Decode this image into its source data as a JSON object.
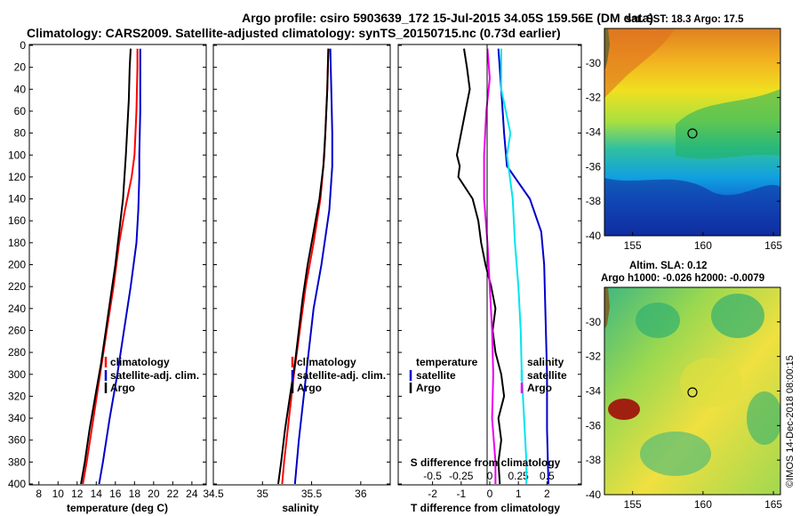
{
  "title_line1": "Argo profile: csiro 5903639_172 15-Jul-2015 34.05S 159.56E (DM data)",
  "title_line2": "Climatology: CARS2009. Satellite-adjusted climatology: synTS_20150715.nc (0.73d earlier)",
  "credit": "©IMOS 14-Dec-2018 08:00:15",
  "colors": {
    "argo": "#000000",
    "climatology": "#ff0000",
    "satellite": "#0000cc",
    "satellite_salinity": "#00e5ee",
    "argo_salinity": "#ee00ee"
  },
  "depth_axis": {
    "range": [
      0,
      400
    ],
    "ticks": [
      0,
      20,
      40,
      60,
      80,
      100,
      120,
      140,
      160,
      180,
      200,
      220,
      240,
      260,
      280,
      300,
      320,
      340,
      360,
      380,
      400
    ]
  },
  "chart_data": [
    {
      "type": "line",
      "id": "temperature",
      "xlabel": "temperature (deg C)",
      "ylabel": "depth",
      "xlim": [
        7,
        25.5
      ],
      "ylim": [
        400,
        0
      ],
      "xticks": [
        8,
        10,
        12,
        14,
        16,
        18,
        20,
        22,
        24
      ],
      "legend": [
        "climatology",
        "satellite-adj. clim.",
        "Argo"
      ],
      "series": [
        {
          "name": "climatology",
          "color": "red",
          "depth": [
            3,
            20,
            60,
            100,
            120,
            150,
            180,
            220,
            260,
            300,
            340,
            380,
            400
          ],
          "values": [
            18.3,
            18.3,
            18.2,
            18.0,
            17.7,
            17.0,
            16.4,
            15.8,
            15.1,
            14.4,
            13.7,
            13.0,
            12.6
          ]
        },
        {
          "name": "satellite-adj. clim.",
          "color": "blue",
          "depth": [
            3,
            20,
            60,
            100,
            120,
            150,
            180,
            220,
            260,
            300,
            340,
            380,
            400
          ],
          "values": [
            18.6,
            18.6,
            18.6,
            18.5,
            18.5,
            18.4,
            18.2,
            17.6,
            16.9,
            16.2,
            15.4,
            14.7,
            14.3
          ]
        },
        {
          "name": "Argo",
          "color": "black",
          "depth": [
            3,
            20,
            50,
            100,
            140,
            170,
            200,
            230,
            260,
            290,
            320,
            350,
            380,
            400
          ],
          "values": [
            17.6,
            17.5,
            17.4,
            17.1,
            16.8,
            16.4,
            16.0,
            15.5,
            15.0,
            14.5,
            13.9,
            13.3,
            12.8,
            12.4
          ]
        }
      ]
    },
    {
      "type": "line",
      "id": "salinity",
      "xlabel": "salinity",
      "ylabel": "depth",
      "xlim": [
        34.5,
        36.3
      ],
      "ylim": [
        400,
        0
      ],
      "xticks": [
        34.5,
        35,
        35.5,
        36
      ],
      "legend": [
        "climatology",
        "satellite-adj. clim.",
        "Argo"
      ],
      "series": [
        {
          "name": "climatology",
          "color": "red",
          "depth": [
            3,
            40,
            100,
            140,
            180,
            220,
            260,
            300,
            340,
            380,
            400
          ],
          "values": [
            35.67,
            35.66,
            35.63,
            35.59,
            35.52,
            35.44,
            35.38,
            35.32,
            35.27,
            35.22,
            35.2
          ]
        },
        {
          "name": "satellite-adj. clim.",
          "color": "blue",
          "depth": [
            3,
            40,
            80,
            110,
            150,
            200,
            240,
            280,
            320,
            360,
            400
          ],
          "values": [
            35.69,
            35.7,
            35.71,
            35.71,
            35.68,
            35.6,
            35.52,
            35.47,
            35.42,
            35.37,
            35.33
          ]
        },
        {
          "name": "Argo",
          "color": "black",
          "depth": [
            3,
            40,
            80,
            110,
            140,
            170,
            200,
            230,
            260,
            290,
            320,
            350,
            380,
            400
          ],
          "values": [
            35.67,
            35.66,
            35.64,
            35.62,
            35.58,
            35.52,
            35.46,
            35.41,
            35.37,
            35.33,
            35.28,
            35.23,
            35.19,
            35.16
          ]
        }
      ]
    },
    {
      "type": "line",
      "id": "difference",
      "xlabel": "T difference from climatology",
      "x2label": "S difference from climatology",
      "ylim": [
        400,
        0
      ],
      "xlim": [
        -3.2,
        3.2
      ],
      "xticks": [
        -2,
        -1,
        0,
        1,
        2
      ],
      "x2ticks": [
        -0.5,
        -0.25,
        0,
        0.25,
        0.5
      ],
      "legend_left_title": "temperature",
      "legend_left": [
        "satellite",
        "Argo"
      ],
      "legend_right_title": "salinity",
      "legend_right": [
        "satellite",
        "Argo"
      ],
      "series": [
        {
          "name": "temperature satellite",
          "color": "blue",
          "depth": [
            3,
            40,
            80,
            110,
            140,
            170,
            200,
            250,
            300,
            350,
            400
          ],
          "values": [
            0.3,
            0.4,
            0.5,
            0.6,
            1.4,
            1.8,
            1.9,
            1.95,
            2.0,
            2.0,
            2.05
          ]
        },
        {
          "name": "temperature Argo",
          "color": "black",
          "depth": [
            3,
            20,
            40,
            60,
            80,
            100,
            110,
            120,
            140,
            160,
            180,
            200,
            220,
            240,
            260,
            280,
            300,
            320,
            340,
            360,
            380,
            400
          ],
          "values": [
            -0.9,
            -0.8,
            -0.7,
            -0.85,
            -1.0,
            -1.15,
            -1.05,
            -1.1,
            -0.6,
            -0.4,
            -0.3,
            -0.15,
            0.05,
            0.2,
            0.1,
            0.2,
            0.4,
            0.5,
            0.3,
            0.4,
            0.3,
            0.35
          ]
        },
        {
          "name": "salinity satellite",
          "color": "cyan",
          "depth": [
            3,
            40,
            80,
            100,
            140,
            180,
            220,
            260,
            300,
            340,
            380,
            400
          ],
          "values": [
            0.1,
            0.1,
            0.18,
            0.15,
            0.2,
            0.22,
            0.25,
            0.27,
            0.28,
            0.3,
            0.32,
            0.32
          ]
        },
        {
          "name": "salinity Argo",
          "color": "magenta",
          "depth": [
            3,
            30,
            60,
            100,
            140,
            180,
            220,
            260,
            300,
            340,
            380,
            400
          ],
          "values": [
            -0.02,
            0.0,
            -0.03,
            -0.05,
            -0.05,
            -0.02,
            0.0,
            0.02,
            0.03,
            0.02,
            0.05,
            0.05
          ]
        }
      ]
    }
  ],
  "maps": [
    {
      "title": "sat. SST: 18.3 Argo: 17.5",
      "xticks": [
        155,
        160,
        165
      ],
      "yticks": [
        -30,
        -32,
        -34,
        -36,
        -38,
        -40
      ],
      "lon_range": [
        153,
        165.5
      ],
      "lat_range": [
        -40,
        -28
      ],
      "argo_position": {
        "lon": 159.56,
        "lat": -34.05
      }
    },
    {
      "title_line1": "Altim. SLA: 0.12",
      "title_line2": "Argo h1000: -0.026 h2000: -0.0079",
      "xticks": [
        155,
        160,
        165
      ],
      "yticks": [
        -30,
        -32,
        -34,
        -36,
        -38,
        -40
      ],
      "lon_range": [
        153,
        165.5
      ],
      "lat_range": [
        -40,
        -28
      ],
      "argo_position": {
        "lon": 159.56,
        "lat": -34.05
      }
    }
  ]
}
